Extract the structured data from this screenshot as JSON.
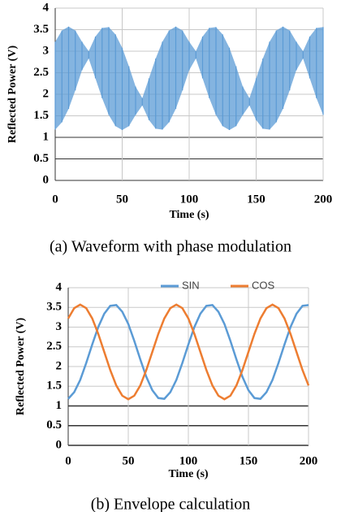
{
  "chart_data": [
    {
      "type": "band",
      "caption": "(a) Waveform with phase modulation",
      "xlabel": "Time (s)",
      "ylabel": "Reflected Power (V)",
      "color": "#5b9bd5",
      "x": [
        0,
        5,
        10,
        15,
        20,
        25,
        30,
        35,
        40,
        45,
        50,
        55,
        60,
        65,
        70,
        75,
        80,
        85,
        90,
        95,
        100,
        105,
        110,
        115,
        120,
        125,
        130,
        135,
        140,
        145,
        150,
        155,
        160,
        165,
        170,
        175,
        180,
        185,
        190,
        195,
        200
      ],
      "upper": [
        3.22,
        3.48,
        3.57,
        3.48,
        3.22,
        3.0,
        3.34,
        3.54,
        3.56,
        3.39,
        3.08,
        2.65,
        2.18,
        1.91,
        2.37,
        2.83,
        3.22,
        3.48,
        3.57,
        3.48,
        3.22,
        3.0,
        3.34,
        3.54,
        3.56,
        3.39,
        3.08,
        2.65,
        2.18,
        1.91,
        2.37,
        2.83,
        3.22,
        3.48,
        3.57,
        3.48,
        3.22,
        3.0,
        3.34,
        3.54,
        3.56
      ],
      "lower": [
        1.18,
        1.35,
        1.66,
        2.09,
        2.56,
        2.83,
        2.37,
        1.91,
        1.52,
        1.26,
        1.17,
        1.26,
        1.52,
        1.74,
        1.4,
        1.2,
        1.18,
        1.35,
        1.66,
        2.09,
        2.56,
        2.83,
        2.37,
        1.91,
        1.52,
        1.26,
        1.17,
        1.26,
        1.52,
        1.74,
        1.4,
        1.2,
        1.18,
        1.35,
        1.66,
        2.09,
        2.56,
        2.83,
        2.37,
        1.91,
        1.52
      ],
      "xlim": [
        0,
        200
      ],
      "xticks": [
        0,
        50,
        100,
        150,
        200
      ],
      "ylim": [
        0,
        4
      ],
      "yticks": [
        0,
        0.5,
        1,
        1.5,
        2,
        2.5,
        3,
        3.5,
        4
      ],
      "grid": true
    },
    {
      "type": "line",
      "caption": "(b) Envelope calculation",
      "xlabel": "Time (s)",
      "ylabel": "Reflected Power (V)",
      "x": [
        0,
        5,
        10,
        15,
        20,
        25,
        30,
        35,
        40,
        45,
        50,
        55,
        60,
        65,
        70,
        75,
        80,
        85,
        90,
        95,
        100,
        105,
        110,
        115,
        120,
        125,
        130,
        135,
        140,
        145,
        150,
        155,
        160,
        165,
        170,
        175,
        180,
        185,
        190,
        195,
        200
      ],
      "series": [
        {
          "name": "SIN",
          "color": "#5b9bd5",
          "values": [
            1.18,
            1.35,
            1.66,
            2.09,
            2.56,
            3.0,
            3.34,
            3.54,
            3.56,
            3.39,
            3.08,
            2.65,
            2.18,
            1.74,
            1.4,
            1.2,
            1.18,
            1.35,
            1.66,
            2.09,
            2.56,
            3.0,
            3.34,
            3.54,
            3.56,
            3.39,
            3.08,
            2.65,
            2.18,
            1.74,
            1.4,
            1.2,
            1.18,
            1.35,
            1.66,
            2.09,
            2.56,
            3.0,
            3.34,
            3.54,
            3.56
          ]
        },
        {
          "name": "COS",
          "color": "#ed7d31",
          "values": [
            3.22,
            3.48,
            3.57,
            3.48,
            3.22,
            2.83,
            2.37,
            1.91,
            1.52,
            1.26,
            1.17,
            1.26,
            1.52,
            1.91,
            2.37,
            2.83,
            3.22,
            3.48,
            3.57,
            3.48,
            3.22,
            2.83,
            2.37,
            1.91,
            1.52,
            1.26,
            1.17,
            1.26,
            1.52,
            1.91,
            2.37,
            2.83,
            3.22,
            3.48,
            3.57,
            3.48,
            3.22,
            2.83,
            2.37,
            1.91,
            1.52
          ]
        }
      ],
      "xlim": [
        0,
        200
      ],
      "xticks": [
        0,
        50,
        100,
        150,
        200
      ],
      "ylim": [
        0,
        4
      ],
      "yticks": [
        0,
        0.5,
        1,
        1.5,
        2,
        2.5,
        3,
        3.5,
        4
      ],
      "grid": true,
      "legend": "top"
    }
  ]
}
